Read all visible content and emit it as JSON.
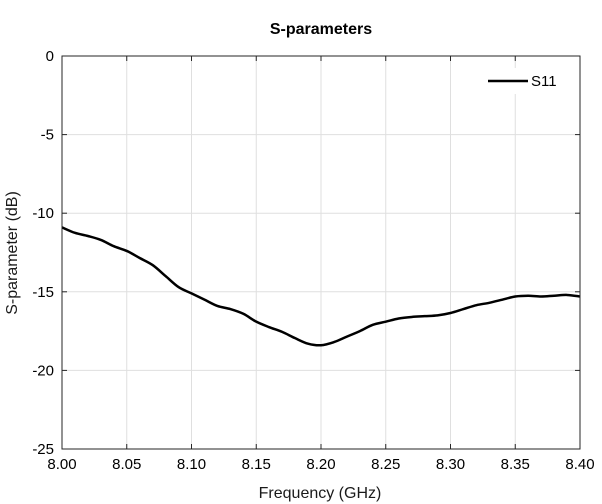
{
  "chart_data": {
    "type": "line",
    "title": "S-parameters",
    "xlabel": "Frequency (GHz)",
    "ylabel": "S-parameter (dB)",
    "xlim": [
      8.0,
      8.4
    ],
    "ylim": [
      -25,
      0
    ],
    "x_ticks": [
      "8.00",
      "8.05",
      "8.10",
      "8.15",
      "8.20",
      "8.25",
      "8.30",
      "8.35",
      "8.40"
    ],
    "y_ticks": [
      "0",
      "-5",
      "-10",
      "-15",
      "-20",
      "-25"
    ],
    "grid": true,
    "legend_position": "top-right",
    "series": [
      {
        "name": "S11",
        "color": "#000000",
        "x": [
          8.0,
          8.01,
          8.02,
          8.03,
          8.04,
          8.05,
          8.06,
          8.07,
          8.08,
          8.09,
          8.1,
          8.11,
          8.12,
          8.13,
          8.14,
          8.15,
          8.16,
          8.17,
          8.18,
          8.19,
          8.2,
          8.21,
          8.22,
          8.23,
          8.24,
          8.25,
          8.26,
          8.27,
          8.28,
          8.29,
          8.3,
          8.31,
          8.32,
          8.33,
          8.34,
          8.35,
          8.36,
          8.37,
          8.38,
          8.39,
          8.4
        ],
        "y": [
          -10.9,
          -11.25,
          -11.45,
          -11.7,
          -12.1,
          -12.4,
          -12.85,
          -13.3,
          -14.0,
          -14.7,
          -15.1,
          -15.5,
          -15.9,
          -16.1,
          -16.4,
          -16.9,
          -17.25,
          -17.55,
          -17.95,
          -18.3,
          -18.4,
          -18.2,
          -17.85,
          -17.5,
          -17.1,
          -16.9,
          -16.7,
          -16.6,
          -16.55,
          -16.5,
          -16.35,
          -16.1,
          -15.85,
          -15.7,
          -15.5,
          -15.3,
          -15.25,
          -15.3,
          -15.25,
          -15.2,
          -15.3
        ]
      }
    ]
  }
}
